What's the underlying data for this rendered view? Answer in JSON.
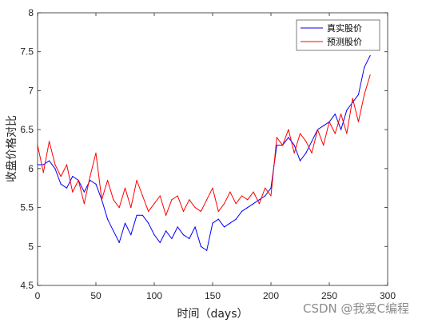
{
  "chart_data": {
    "type": "line",
    "xlabel": "时间（days）",
    "ylabel": "收盘价格对比",
    "xlim": [
      0,
      300
    ],
    "ylim": [
      4.5,
      8
    ],
    "x_ticks": [
      0,
      50,
      100,
      150,
      200,
      250,
      300
    ],
    "y_ticks": [
      4.5,
      5,
      5.5,
      6,
      6.5,
      7,
      7.5,
      8
    ],
    "legend_position": "top-right",
    "grid": false,
    "series": [
      {
        "name": "真实股价",
        "color": "#0000ff",
        "x": [
          0,
          5,
          10,
          15,
          20,
          25,
          30,
          35,
          40,
          45,
          50,
          55,
          60,
          65,
          70,
          75,
          80,
          85,
          90,
          95,
          100,
          105,
          110,
          115,
          120,
          125,
          130,
          135,
          140,
          145,
          150,
          155,
          160,
          165,
          170,
          175,
          180,
          185,
          190,
          195,
          200,
          205,
          210,
          215,
          220,
          225,
          230,
          235,
          240,
          245,
          250,
          255,
          260,
          265,
          270,
          275,
          280,
          285
        ],
        "values": [
          6.05,
          6.05,
          6.1,
          6.0,
          5.8,
          5.75,
          5.9,
          5.85,
          5.7,
          5.85,
          5.8,
          5.6,
          5.35,
          5.2,
          5.05,
          5.3,
          5.15,
          5.4,
          5.4,
          5.3,
          5.15,
          5.05,
          5.2,
          5.1,
          5.25,
          5.15,
          5.1,
          5.25,
          5.0,
          4.95,
          5.3,
          5.35,
          5.25,
          5.3,
          5.35,
          5.45,
          5.5,
          5.55,
          5.6,
          5.65,
          5.75,
          6.3,
          6.3,
          6.4,
          6.3,
          6.1,
          6.2,
          6.35,
          6.5,
          6.55,
          6.6,
          6.7,
          6.5,
          6.75,
          6.85,
          6.95,
          7.3,
          7.45
        ]
      },
      {
        "name": "预测股价",
        "color": "#ff0000",
        "x": [
          0,
          5,
          10,
          15,
          20,
          25,
          30,
          35,
          40,
          45,
          50,
          55,
          60,
          65,
          70,
          75,
          80,
          85,
          90,
          95,
          100,
          105,
          110,
          115,
          120,
          125,
          130,
          135,
          140,
          145,
          150,
          155,
          160,
          165,
          170,
          175,
          180,
          185,
          190,
          195,
          200,
          205,
          210,
          215,
          220,
          225,
          230,
          235,
          240,
          245,
          250,
          255,
          260,
          265,
          270,
          275,
          280,
          285
        ],
        "values": [
          6.3,
          5.95,
          6.35,
          6.05,
          5.9,
          6.05,
          5.7,
          5.85,
          5.55,
          5.9,
          6.2,
          5.6,
          5.85,
          5.6,
          5.5,
          5.75,
          5.5,
          5.85,
          5.65,
          5.45,
          5.55,
          5.65,
          5.4,
          5.6,
          5.65,
          5.45,
          5.6,
          5.5,
          5.45,
          5.6,
          5.75,
          5.45,
          5.55,
          5.7,
          5.55,
          5.65,
          5.6,
          5.7,
          5.55,
          5.75,
          5.65,
          6.4,
          6.3,
          6.5,
          6.2,
          6.45,
          6.35,
          6.2,
          6.5,
          6.3,
          6.6,
          6.45,
          6.7,
          6.45,
          6.9,
          6.6,
          6.95,
          7.2
        ]
      }
    ]
  },
  "watermark": "CSDN @我爱C编程"
}
